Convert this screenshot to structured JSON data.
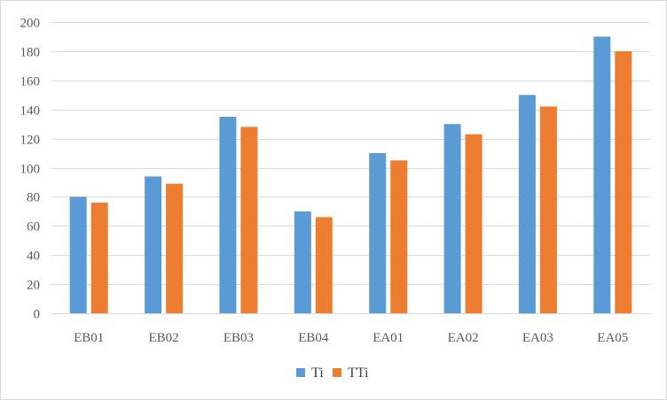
{
  "chart_data": {
    "type": "bar",
    "title": "",
    "xlabel": "",
    "ylabel": "",
    "categories": [
      "EB01",
      "EB02",
      "EB03",
      "EB04",
      "EA01",
      "EA02",
      "EA03",
      "EA05"
    ],
    "series": [
      {
        "name": "Ti",
        "color": "#5b9bd5",
        "values": [
          80,
          94,
          135,
          70,
          110,
          130,
          150,
          190
        ]
      },
      {
        "name": "TTi",
        "color": "#ed7d31",
        "values": [
          76,
          89,
          128,
          66,
          105,
          123,
          142,
          180
        ]
      }
    ],
    "ylim": [
      0,
      200
    ],
    "yticks": [
      0,
      20,
      40,
      60,
      80,
      100,
      120,
      140,
      160,
      180,
      200
    ],
    "grid": true,
    "legend_position": "bottom"
  }
}
